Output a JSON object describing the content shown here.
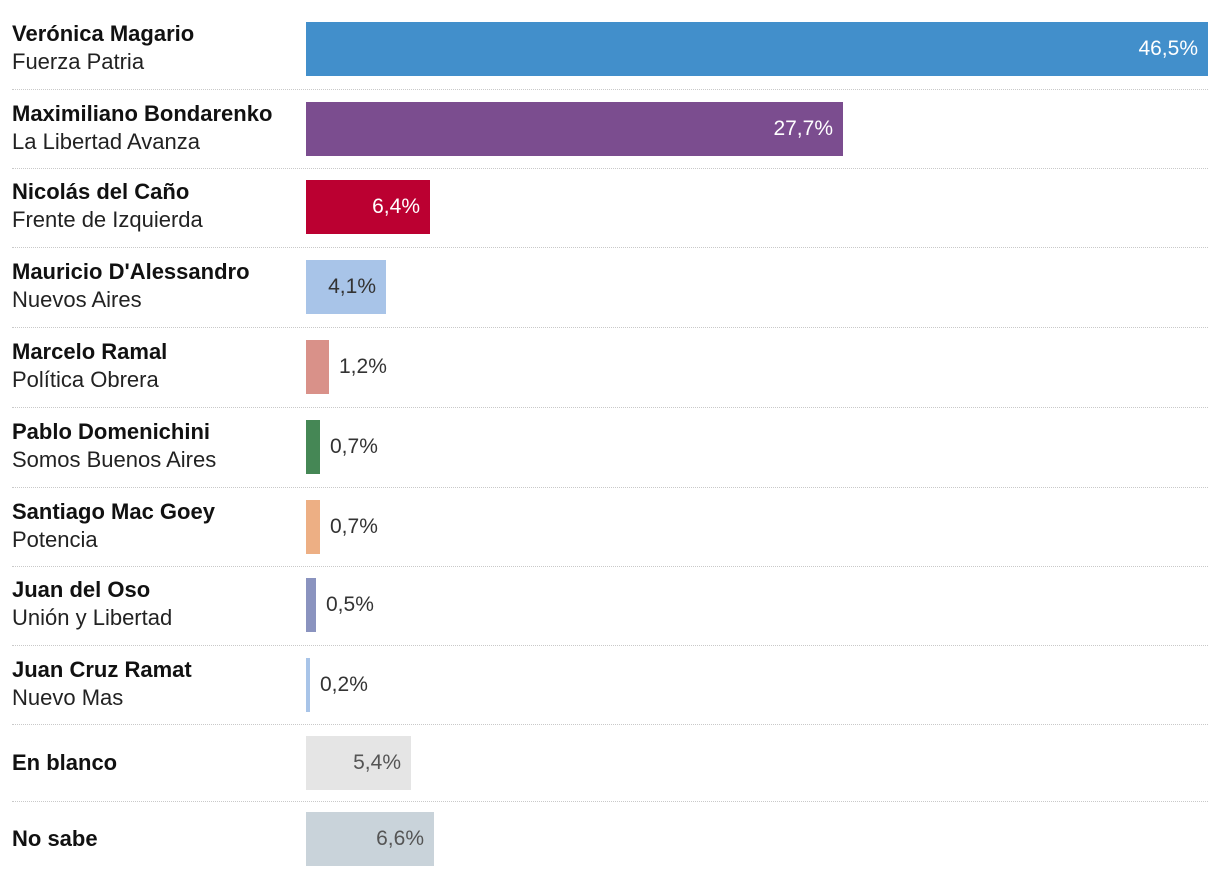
{
  "chart_data": {
    "type": "bar",
    "orientation": "horizontal",
    "unit": "%",
    "xlim": [
      0,
      46.5
    ],
    "items": [
      {
        "name": "Verónica Magario",
        "party": "Fuerza Patria",
        "value": 46.5,
        "label": "46,5%",
        "color": "#428fcb",
        "label_color": "#ffffff"
      },
      {
        "name": "Maximiliano Bondarenko",
        "party": "La Libertad Avanza",
        "value": 27.7,
        "label": "27,7%",
        "color": "#7b4d8f",
        "label_color": "#ffffff"
      },
      {
        "name": "Nicolás del Caño",
        "party": "Frente de Izquierda",
        "value": 6.4,
        "label": "6,4%",
        "color": "#bb0031",
        "label_color": "#ffffff"
      },
      {
        "name": "Mauricio D'Alessandro",
        "party": "Nuevos Aires",
        "value": 4.1,
        "label": "4,1%",
        "color": "#a8c4e8",
        "label_color": "#333333"
      },
      {
        "name": "Marcelo Ramal",
        "party": "Política Obrera",
        "value": 1.2,
        "label": "1,2%",
        "color": "#d99189",
        "label_color": "#333333"
      },
      {
        "name": "Pablo Domenichini",
        "party": "Somos Buenos Aires",
        "value": 0.7,
        "label": "0,7%",
        "color": "#458755",
        "label_color": "#333333"
      },
      {
        "name": "Santiago Mac Goey",
        "party": "Potencia",
        "value": 0.7,
        "label": "0,7%",
        "color": "#edaf84",
        "label_color": "#333333"
      },
      {
        "name": "Juan del Oso",
        "party": "Unión y Libertad",
        "value": 0.5,
        "label": "0,5%",
        "color": "#8a93bf",
        "label_color": "#333333"
      },
      {
        "name": "Juan Cruz Ramat",
        "party": "Nuevo Mas",
        "value": 0.2,
        "label": "0,2%",
        "color": "#a8c4e8",
        "label_color": "#333333"
      },
      {
        "name": "En blanco",
        "party": "",
        "value": 5.4,
        "label": "5,4%",
        "color": "#e5e5e5",
        "label_color": "#555555"
      },
      {
        "name": "No sabe",
        "party": "",
        "value": 6.6,
        "label": "6,6%",
        "color": "#c9d3da",
        "label_color": "#555555"
      }
    ]
  }
}
